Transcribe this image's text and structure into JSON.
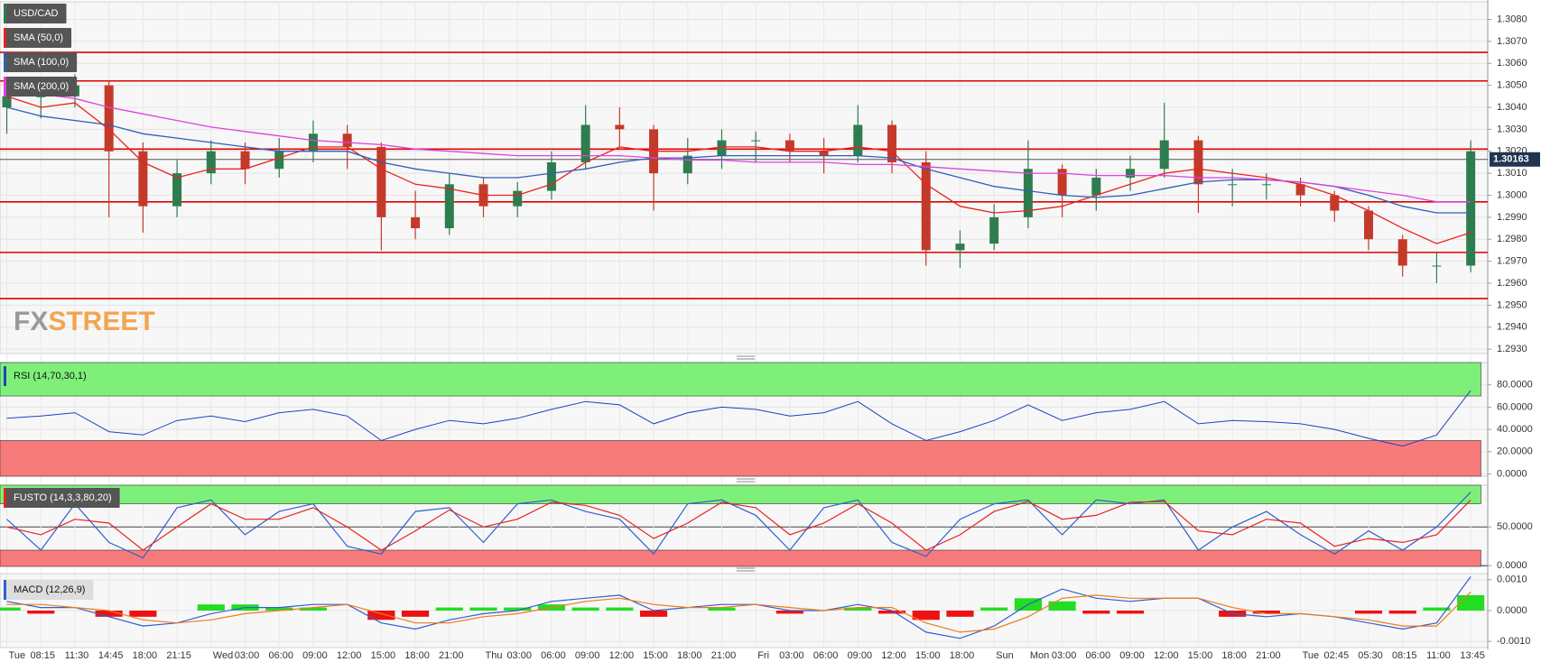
{
  "chart_data": [
    {
      "type": "candlestick",
      "title": "USD/CAD",
      "x": [
        0,
        1,
        2,
        3,
        4,
        5,
        6,
        7,
        8,
        9,
        10,
        11,
        12,
        13,
        14,
        15,
        16,
        17,
        18,
        19,
        20,
        21,
        22,
        23,
        24,
        25,
        26,
        27,
        28,
        29,
        30,
        31,
        32,
        33,
        34,
        35,
        36,
        37,
        38,
        39,
        40,
        41,
        42,
        43
      ],
      "open": [
        1.304,
        1.3045,
        1.3045,
        1.305,
        1.302,
        1.2995,
        1.301,
        1.302,
        1.3012,
        1.302,
        1.3028,
        1.3022,
        1.299,
        1.2985,
        1.3005,
        1.2995,
        1.3002,
        1.3015,
        1.3032,
        1.303,
        1.301,
        1.3018,
        1.3025,
        1.3025,
        1.302,
        1.3018,
        1.3032,
        1.3015,
        1.2975,
        1.2978,
        1.299,
        1.3012,
        1.3,
        1.3008,
        1.3012,
        1.3025,
        1.3005,
        1.3005,
        1.3005,
        1.3,
        1.2993,
        1.298,
        1.2968,
        1.2968
      ],
      "high": [
        1.305,
        1.3052,
        1.3055,
        1.3052,
        1.3024,
        1.3016,
        1.3025,
        1.3024,
        1.3026,
        1.3034,
        1.3032,
        1.3024,
        1.3002,
        1.301,
        1.3008,
        1.3006,
        1.302,
        1.3041,
        1.304,
        1.3032,
        1.3026,
        1.303,
        1.3029,
        1.3028,
        1.3026,
        1.3041,
        1.3034,
        1.302,
        1.2984,
        1.2996,
        1.3025,
        1.3014,
        1.3012,
        1.3018,
        1.3042,
        1.3027,
        1.3012,
        1.301,
        1.3008,
        1.3002,
        1.2995,
        1.2982,
        1.2974,
        1.3025
      ],
      "low": [
        1.3028,
        1.3035,
        1.304,
        1.299,
        1.2983,
        1.299,
        1.3005,
        1.3005,
        1.3008,
        1.3015,
        1.3012,
        1.2975,
        1.298,
        1.2982,
        1.299,
        1.299,
        1.2998,
        1.3012,
        1.3022,
        1.2993,
        1.3005,
        1.3012,
        1.3015,
        1.3015,
        1.301,
        1.3015,
        1.301,
        1.2968,
        1.2967,
        1.2975,
        1.2985,
        1.299,
        1.2993,
        1.3002,
        1.3008,
        1.2992,
        1.2995,
        1.2998,
        1.2995,
        1.2988,
        1.2975,
        1.2963,
        1.296,
        1.2965
      ],
      "close": [
        1.3045,
        1.3045,
        1.305,
        1.302,
        1.2995,
        1.301,
        1.302,
        1.3012,
        1.302,
        1.3028,
        1.3022,
        1.299,
        1.2985,
        1.3005,
        1.2995,
        1.3002,
        1.3015,
        1.3032,
        1.303,
        1.301,
        1.3018,
        1.3025,
        1.3025,
        1.302,
        1.3018,
        1.3032,
        1.3015,
        1.2975,
        1.2978,
        1.299,
        1.3012,
        1.3,
        1.3008,
        1.3012,
        1.3025,
        1.3005,
        1.3005,
        1.3005,
        1.3,
        1.2993,
        1.298,
        1.2968,
        1.2968,
        1.302
      ],
      "up_color": "#2e7d4f",
      "down_color": "#c43a2a",
      "series": [
        {
          "name": "SMA (50,0)",
          "color": "#e8231f",
          "values": [
            1.3045,
            1.304,
            1.3042,
            1.303,
            1.3015,
            1.3008,
            1.3012,
            1.3012,
            1.3017,
            1.3022,
            1.3022,
            1.3012,
            1.3005,
            1.3003,
            1.3,
            1.3,
            1.3005,
            1.3015,
            1.3022,
            1.302,
            1.302,
            1.3022,
            1.3022,
            1.302,
            1.302,
            1.3022,
            1.302,
            1.3005,
            1.2995,
            1.2992,
            1.2993,
            1.2995,
            1.3,
            1.3005,
            1.301,
            1.3012,
            1.301,
            1.3008,
            1.3005,
            1.3,
            1.2993,
            1.2985,
            1.2978,
            1.2983
          ]
        },
        {
          "name": "SMA (100,0)",
          "color": "#2f5fb8",
          "values": [
            1.304,
            1.3036,
            1.3034,
            1.3032,
            1.3028,
            1.3026,
            1.3024,
            1.3022,
            1.302,
            1.302,
            1.302,
            1.3015,
            1.3012,
            1.301,
            1.3008,
            1.3008,
            1.301,
            1.3012,
            1.3015,
            1.3017,
            1.3017,
            1.3018,
            1.3018,
            1.3018,
            1.3018,
            1.3018,
            1.3017,
            1.3012,
            1.3008,
            1.3004,
            1.3002,
            1.3,
            1.2999,
            1.3,
            1.3003,
            1.3006,
            1.3007,
            1.3007,
            1.3006,
            1.3004,
            1.3,
            1.2995,
            1.2992,
            1.2992
          ]
        },
        {
          "name": "SMA (200,0)",
          "color": "#e040e0",
          "values": [
            1.3048,
            1.3046,
            1.3044,
            1.304,
            1.3037,
            1.3034,
            1.3031,
            1.3029,
            1.3027,
            1.3025,
            1.3024,
            1.3023,
            1.3021,
            1.302,
            1.3019,
            1.3018,
            1.3018,
            1.3018,
            1.3018,
            1.3017,
            1.3016,
            1.3016,
            1.3015,
            1.3015,
            1.3015,
            1.3014,
            1.3014,
            1.3013,
            1.3012,
            1.3011,
            1.301,
            1.301,
            1.3009,
            1.3009,
            1.3009,
            1.3008,
            1.3008,
            1.3007,
            1.3006,
            1.3004,
            1.3002,
            1.3,
            1.2997,
            1.2997
          ]
        }
      ],
      "levels": [
        1.3065,
        1.3052,
        1.3021,
        1.2997,
        1.2974,
        1.2953
      ],
      "level_color": "#e00000",
      "last_price": 1.30163,
      "last_price_color": "#1f3550",
      "watermark": [
        "FX",
        "STREET"
      ],
      "ylim": [
        1.2928,
        1.3088
      ],
      "yticks": [
        {
          "value": 1.293,
          "label": "1.2930"
        },
        {
          "value": 1.294,
          "label": "1.2940"
        },
        {
          "value": 1.295,
          "label": "1.2950"
        },
        {
          "value": 1.296,
          "label": "1.2960"
        },
        {
          "value": 1.297,
          "label": "1.2970"
        },
        {
          "value": 1.298,
          "label": "1.2980"
        },
        {
          "value": 1.299,
          "label": "1.2990"
        },
        {
          "value": 1.3,
          "label": "1.3000"
        },
        {
          "value": 1.301,
          "label": "1.3010"
        },
        {
          "value": 1.302,
          "label": "1.3020"
        },
        {
          "value": 1.303,
          "label": "1.3030"
        },
        {
          "value": 1.304,
          "label": "1.3040"
        },
        {
          "value": 1.305,
          "label": "1.3050"
        },
        {
          "value": 1.306,
          "label": "1.3060"
        },
        {
          "value": 1.307,
          "label": "1.3070"
        },
        {
          "value": 1.308,
          "label": "1.3080"
        }
      ],
      "grid": true
    },
    {
      "type": "rsi",
      "title": "RSI (14,70,30,1)",
      "x": [
        0,
        1,
        2,
        3,
        4,
        5,
        6,
        7,
        8,
        9,
        10,
        11,
        12,
        13,
        14,
        15,
        16,
        17,
        18,
        19,
        20,
        21,
        22,
        23,
        24,
        25,
        26,
        27,
        28,
        29,
        30,
        31,
        32,
        33,
        34,
        35,
        36,
        37,
        38,
        39,
        40,
        41,
        42,
        43
      ],
      "series": [
        {
          "color": "#2040c0",
          "values": [
            50,
            52,
            55,
            38,
            35,
            48,
            52,
            47,
            55,
            58,
            52,
            30,
            40,
            48,
            45,
            50,
            58,
            65,
            62,
            45,
            55,
            60,
            58,
            52,
            55,
            65,
            45,
            30,
            38,
            48,
            62,
            48,
            55,
            58,
            65,
            45,
            48,
            47,
            45,
            40,
            32,
            25,
            35,
            75
          ]
        }
      ],
      "overbought": 70,
      "oversold": 30,
      "high_color": "#7ef07a",
      "low_color": "#f77b7b",
      "ylim": [
        -2,
        100
      ],
      "yticks": [
        {
          "value": 0,
          "label": "0.0000"
        },
        {
          "value": 20,
          "label": "20.0000"
        },
        {
          "value": 40,
          "label": "40.0000"
        },
        {
          "value": 60,
          "label": "60.0000"
        },
        {
          "value": 80,
          "label": "80.0000"
        }
      ],
      "grid": true
    },
    {
      "type": "stochastic",
      "title": "FUSTO (14,3,3,80,20)",
      "x": [
        0,
        1,
        2,
        3,
        4,
        5,
        6,
        7,
        8,
        9,
        10,
        11,
        12,
        13,
        14,
        15,
        16,
        17,
        18,
        19,
        20,
        21,
        22,
        23,
        24,
        25,
        26,
        27,
        28,
        29,
        30,
        31,
        32,
        33,
        34,
        35,
        36,
        37,
        38,
        39,
        40,
        41,
        42,
        43
      ],
      "series": [
        {
          "color": "#2f5fd0",
          "values": [
            60,
            20,
            80,
            30,
            10,
            75,
            85,
            40,
            70,
            80,
            25,
            15,
            70,
            75,
            30,
            80,
            85,
            70,
            60,
            15,
            80,
            85,
            65,
            20,
            75,
            85,
            30,
            12,
            60,
            80,
            85,
            40,
            85,
            80,
            85,
            20,
            50,
            70,
            40,
            15,
            45,
            20,
            50,
            95
          ]
        },
        {
          "color": "#e8231f",
          "values": [
            50,
            40,
            60,
            55,
            20,
            50,
            80,
            60,
            60,
            75,
            50,
            20,
            45,
            72,
            50,
            60,
            82,
            78,
            65,
            35,
            55,
            82,
            75,
            40,
            55,
            80,
            55,
            20,
            40,
            70,
            83,
            60,
            65,
            82,
            83,
            45,
            40,
            60,
            55,
            25,
            35,
            30,
            40,
            85
          ]
        }
      ],
      "overbought": 80,
      "oversold": 20,
      "high_color": "#7ef07a",
      "low_color": "#f77b7b",
      "ylim": [
        -1,
        104
      ],
      "yticks": [
        {
          "value": 0,
          "label": "0.0000"
        },
        {
          "value": 50,
          "label": "50.0000"
        }
      ],
      "grid": true
    },
    {
      "type": "macd",
      "title": "MACD (12,26,9)",
      "x": [
        0,
        1,
        2,
        3,
        4,
        5,
        6,
        7,
        8,
        9,
        10,
        11,
        12,
        13,
        14,
        15,
        16,
        17,
        18,
        19,
        20,
        21,
        22,
        23,
        24,
        25,
        26,
        27,
        28,
        29,
        30,
        31,
        32,
        33,
        34,
        35,
        36,
        37,
        38,
        39,
        40,
        41,
        42,
        43
      ],
      "series": [
        {
          "color": "#2f5fd0",
          "values": [
            0.0003,
            0.0001,
            0.0001,
            -0.0002,
            -0.0005,
            -0.0004,
            -0.0001,
            0.0001,
            0.0001,
            0.0002,
            0.0002,
            -0.0004,
            -0.0006,
            -0.0003,
            -0.0001,
            0.0,
            0.0003,
            0.0004,
            0.0005,
            0.0,
            0.0001,
            0.0002,
            0.0002,
            0.0,
            0.0,
            0.0002,
            0.0,
            -0.0007,
            -0.0009,
            -0.0005,
            0.0002,
            0.0007,
            0.0004,
            0.0003,
            0.0004,
            0.0004,
            -0.0001,
            -0.0002,
            -0.0001,
            -0.0002,
            -0.0004,
            -0.0006,
            -0.0004,
            0.0011
          ]
        },
        {
          "color": "#f07a1a",
          "values": [
            0.0002,
            0.0002,
            0.0001,
            0.0,
            -0.0003,
            -0.0004,
            -0.0003,
            -0.0001,
            0.0,
            0.0001,
            0.0002,
            -0.0001,
            -0.0004,
            -0.0004,
            -0.0002,
            -0.0001,
            0.0001,
            0.0003,
            0.0004,
            0.0002,
            0.0001,
            0.0001,
            0.0002,
            0.0001,
            0.0,
            0.0001,
            0.0001,
            -0.0004,
            -0.0007,
            -0.0006,
            -0.0002,
            0.0004,
            0.0005,
            0.0004,
            0.0004,
            0.0004,
            0.0001,
            -0.0001,
            -0.0001,
            -0.0002,
            -0.0003,
            -0.0005,
            -0.0005,
            0.0006
          ]
        }
      ],
      "histogram": [
        0.0001,
        -0.0001,
        0.0,
        -0.0002,
        -0.0002,
        0.0,
        0.0002,
        0.0002,
        0.0001,
        0.0001,
        0.0,
        -0.0003,
        -0.0002,
        0.0001,
        0.0001,
        0.0001,
        0.0002,
        0.0001,
        0.0001,
        -0.0002,
        0.0,
        0.0001,
        0.0,
        -0.0001,
        0.0,
        0.0001,
        -0.0001,
        -0.0003,
        -0.0002,
        0.0001,
        0.0004,
        0.0003,
        -0.0001,
        -0.0001,
        0.0,
        0.0,
        -0.0002,
        -0.0001,
        0.0,
        0.0,
        -0.0001,
        -0.0001,
        0.0001,
        0.0005
      ],
      "pos_color": "#22dd22",
      "neg_color": "#ee1111",
      "ylim": [
        -0.0012,
        0.0012
      ],
      "yticks": [
        {
          "value": -0.001,
          "label": "-0.0010"
        },
        {
          "value": 0,
          "label": "0.0000"
        },
        {
          "value": 0.001,
          "label": "0.0010"
        }
      ],
      "grid": true,
      "xlim": [
        -0.2,
        43.5
      ],
      "xticks": [
        {
          "value": 0,
          "label": "Tue"
        },
        {
          "value": 1,
          "label": "08:15"
        },
        {
          "value": 2,
          "label": "11:30"
        },
        {
          "value": 3,
          "label": "14:45"
        },
        {
          "value": 4,
          "label": "18:00"
        },
        {
          "value": 5,
          "label": "21:15"
        },
        {
          "value": 6,
          "label": "Wed"
        },
        {
          "value": 7,
          "label": "03:00"
        },
        {
          "value": 8,
          "label": "06:00"
        },
        {
          "value": 9,
          "label": "09:00"
        },
        {
          "value": 10,
          "label": "12:00"
        },
        {
          "value": 11,
          "label": "15:00"
        },
        {
          "value": 12,
          "label": "18:00"
        },
        {
          "value": 13,
          "label": "21:00"
        },
        {
          "value": 14,
          "label": "Thu"
        },
        {
          "value": 15,
          "label": "03:00"
        },
        {
          "value": 16,
          "label": "06:00"
        },
        {
          "value": 17,
          "label": "09:00"
        },
        {
          "value": 18,
          "label": "12:00"
        },
        {
          "value": 19,
          "label": "15:00"
        },
        {
          "value": 20,
          "label": "18:00"
        },
        {
          "value": 21,
          "label": "21:00"
        },
        {
          "value": 22,
          "label": "Fri"
        },
        {
          "value": 23,
          "label": "03:00"
        },
        {
          "value": 24,
          "label": "06:00"
        },
        {
          "value": 25,
          "label": "09:00"
        },
        {
          "value": 26,
          "label": "12:00"
        },
        {
          "value": 27,
          "label": "15:00"
        },
        {
          "value": 28,
          "label": "18:00"
        },
        {
          "value": 29,
          "label": "Sun"
        },
        {
          "value": 30,
          "label": "Mon"
        },
        {
          "value": 31,
          "label": "03:00"
        },
        {
          "value": 32,
          "label": "06:00"
        },
        {
          "value": 33,
          "label": "09:00"
        },
        {
          "value": 34,
          "label": "12:00"
        },
        {
          "value": 35,
          "label": "15:00"
        },
        {
          "value": 36,
          "label": "18:00"
        },
        {
          "value": 37,
          "label": "21:00"
        },
        {
          "value": 38,
          "label": "Tue"
        },
        {
          "value": 39,
          "label": "02:45"
        },
        {
          "value": 40,
          "label": "05:30"
        },
        {
          "value": 41,
          "label": "08:15"
        },
        {
          "value": 42,
          "label": "11:00"
        },
        {
          "value": 43,
          "label": "13:45"
        }
      ]
    }
  ]
}
